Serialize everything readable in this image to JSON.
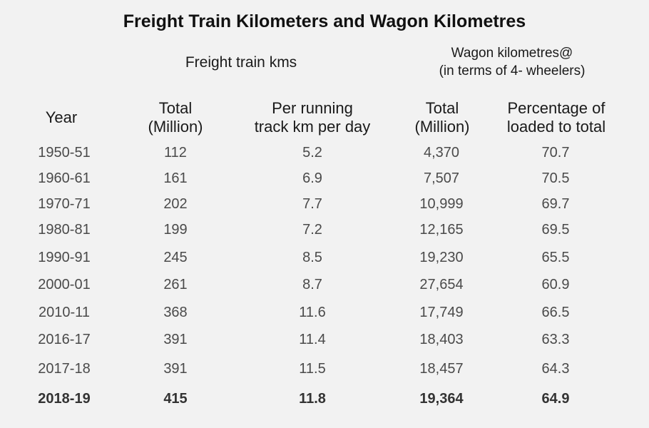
{
  "chart_data": {
    "type": "table",
    "title": "Freight Train Kilometers and Wagon Kilometres",
    "group_headers": {
      "freight": "Freight train kms",
      "wagon_line1": "Wagon kilometres@",
      "wagon_line2": "(in terms of 4- wheelers)"
    },
    "columns": [
      {
        "l1": "Year",
        "l2": ""
      },
      {
        "l1": "Total",
        "l2": "(Million)"
      },
      {
        "l1": "Per running",
        "l2": "track km per day"
      },
      {
        "l1": "Total",
        "l2": "(Million)"
      },
      {
        "l1": "Percentage of",
        "l2": "loaded to total"
      }
    ],
    "rows": [
      {
        "year": "1950-51",
        "freight_total": "112",
        "per_track_km": "5.2",
        "wagon_total": "4,370",
        "pct_loaded": "70.7",
        "bold": false
      },
      {
        "year": "1960-61",
        "freight_total": "161",
        "per_track_km": "6.9",
        "wagon_total": "7,507",
        "pct_loaded": "70.5",
        "bold": false
      },
      {
        "year": "1970-71",
        "freight_total": "202",
        "per_track_km": "7.7",
        "wagon_total": "10,999",
        "pct_loaded": "69.7",
        "bold": false
      },
      {
        "year": "1980-81",
        "freight_total": "199",
        "per_track_km": "7.2",
        "wagon_total": "12,165",
        "pct_loaded": "69.5",
        "bold": false
      },
      {
        "year": "1990-91",
        "freight_total": "245",
        "per_track_km": "8.5",
        "wagon_total": "19,230",
        "pct_loaded": "65.5",
        "bold": false
      },
      {
        "year": "2000-01",
        "freight_total": "261",
        "per_track_km": "8.7",
        "wagon_total": "27,654",
        "pct_loaded": "60.9",
        "bold": false
      },
      {
        "year": "2010-11",
        "freight_total": "368",
        "per_track_km": "11.6",
        "wagon_total": "17,749",
        "pct_loaded": "66.5",
        "bold": false
      },
      {
        "year": "2016-17",
        "freight_total": "391",
        "per_track_km": "11.4",
        "wagon_total": "18,403",
        "pct_loaded": "63.3",
        "bold": false
      },
      {
        "year": "2017-18",
        "freight_total": "391",
        "per_track_km": "11.5",
        "wagon_total": "18,457",
        "pct_loaded": "64.3",
        "bold": false
      },
      {
        "year": "2018-19",
        "freight_total": "415",
        "per_track_km": "11.8",
        "wagon_total": "19,364",
        "pct_loaded": "64.9",
        "bold": true
      }
    ]
  }
}
